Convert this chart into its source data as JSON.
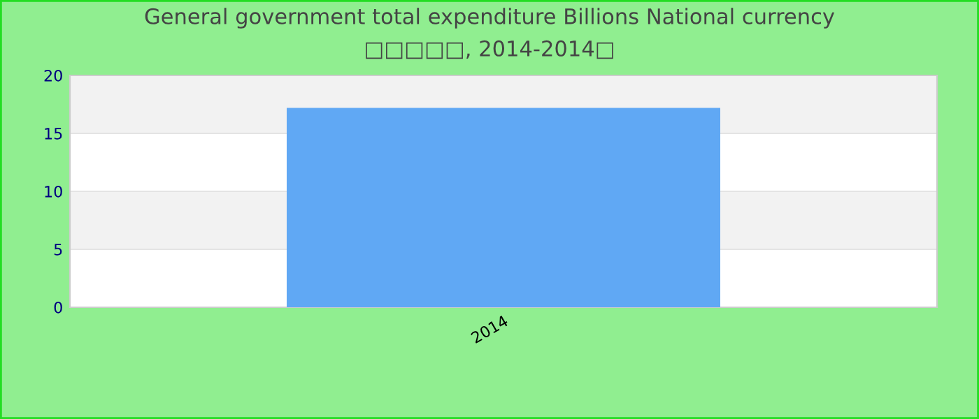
{
  "chart_data": {
    "type": "bar",
    "title": "General government total expenditure Billions National currency",
    "subtitle": "□□□□□, 2014-2014□",
    "categories": [
      "2014"
    ],
    "values": [
      17.2
    ],
    "color": "#60a8f4",
    "ylim": [
      0,
      20
    ],
    "yticks": [
      0,
      5,
      10,
      15,
      20
    ],
    "grid": "y"
  }
}
